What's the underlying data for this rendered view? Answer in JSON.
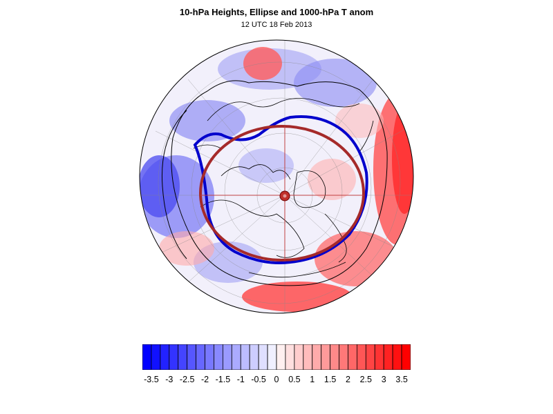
{
  "title": "10-hPa Heights, Ellipse and 1000-hPa T anom",
  "subtitle": "12 UTC 18 Feb 2013",
  "colors": {
    "negative_max": "#0000ff",
    "positive_max": "#ff0000",
    "height_contour": "#0000cc",
    "ellipse": "#a52a2a",
    "coastline": "#000000"
  },
  "colorbar": {
    "min": -3.75,
    "max": 3.75,
    "step": 0.25,
    "labels": [
      "-3.5",
      "-3",
      "-2.5",
      "-2",
      "-1.5",
      "-1",
      "-0.5",
      "0",
      "0.5",
      "1",
      "1.5",
      "2",
      "2.5",
      "3",
      "3.5"
    ]
  }
}
